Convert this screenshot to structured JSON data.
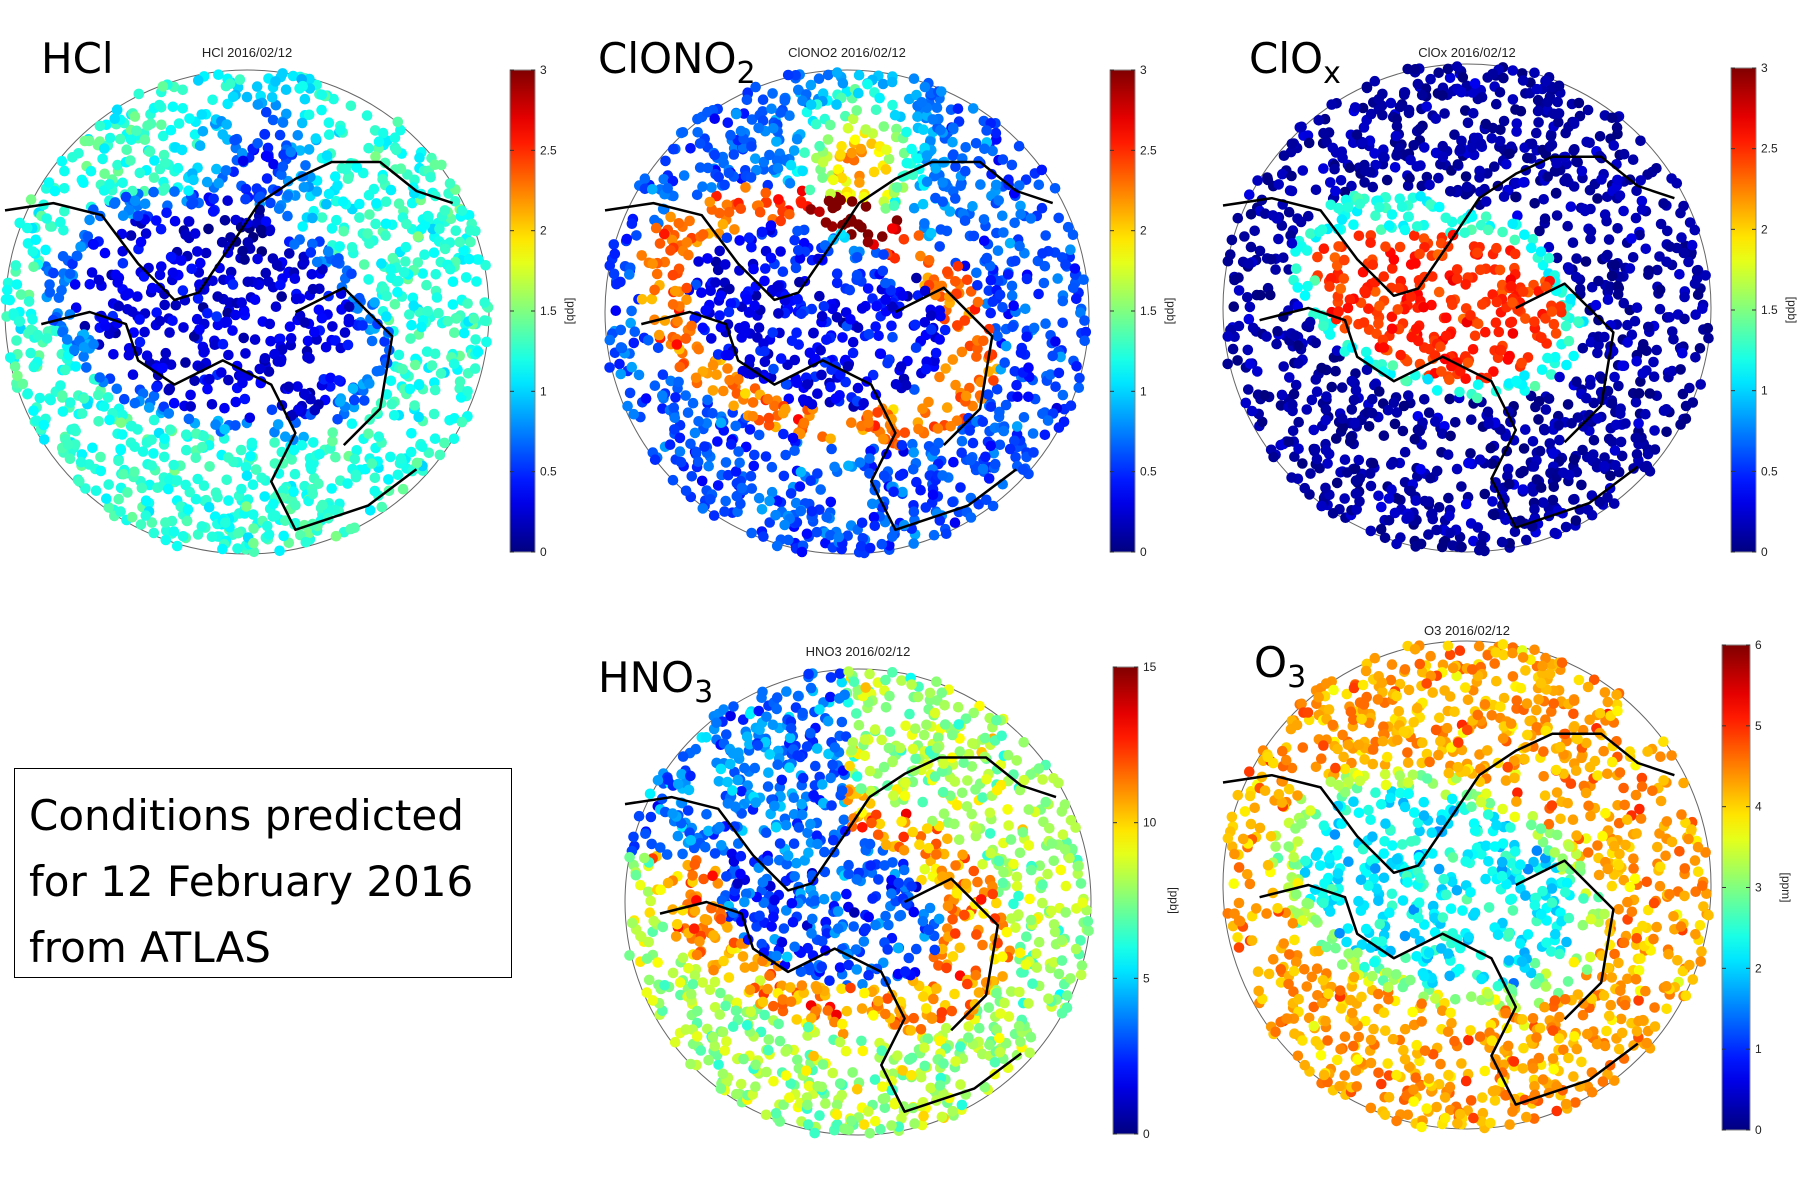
{
  "caption": {
    "lines": [
      "Conditions predicted",
      "for 12 February 2016",
      "from ATLAS"
    ]
  },
  "chart_data": [
    {
      "type": "scatter",
      "label": "HCl",
      "label_sub": "",
      "title": "HCl 2016/02/12",
      "colorbar": {
        "label": "[ppb]",
        "range": [
          0,
          3
        ],
        "ticks": [
          "0",
          "0.5",
          "1",
          "1.5",
          "2",
          "2.5",
          "3"
        ],
        "colormap": "jet"
      }
    },
    {
      "type": "scatter",
      "label": "ClONO",
      "label_sub": "2",
      "title": "ClONO2 2016/02/12",
      "colorbar": {
        "label": "[ppb]",
        "range": [
          0,
          3
        ],
        "ticks": [
          "0",
          "0.5",
          "1",
          "1.5",
          "2",
          "2.5",
          "3"
        ],
        "colormap": "jet"
      }
    },
    {
      "type": "scatter",
      "label": "ClO",
      "label_sub": "x",
      "title": "ClOx 2016/02/12",
      "colorbar": {
        "label": "[ppb]",
        "range": [
          0,
          3
        ],
        "ticks": [
          "0",
          "0.5",
          "1",
          "1.5",
          "2",
          "2.5",
          "3"
        ],
        "colormap": "jet"
      }
    },
    {
      "type": "scatter",
      "label": "HNO",
      "label_sub": "3",
      "title": "HNO3 2016/02/12",
      "colorbar": {
        "label": "[ppb]",
        "range": [
          0,
          15
        ],
        "ticks": [
          "0",
          "5",
          "10",
          "15"
        ],
        "colormap": "jet"
      }
    },
    {
      "type": "scatter",
      "label": "O",
      "label_sub": "3",
      "title": "O3 2016/02/12",
      "colorbar": {
        "label": "[ppm]",
        "range": [
          0,
          6
        ],
        "ticks": [
          "0",
          "1",
          "2",
          "3",
          "4",
          "5",
          "6"
        ],
        "colormap": "jet"
      }
    }
  ]
}
